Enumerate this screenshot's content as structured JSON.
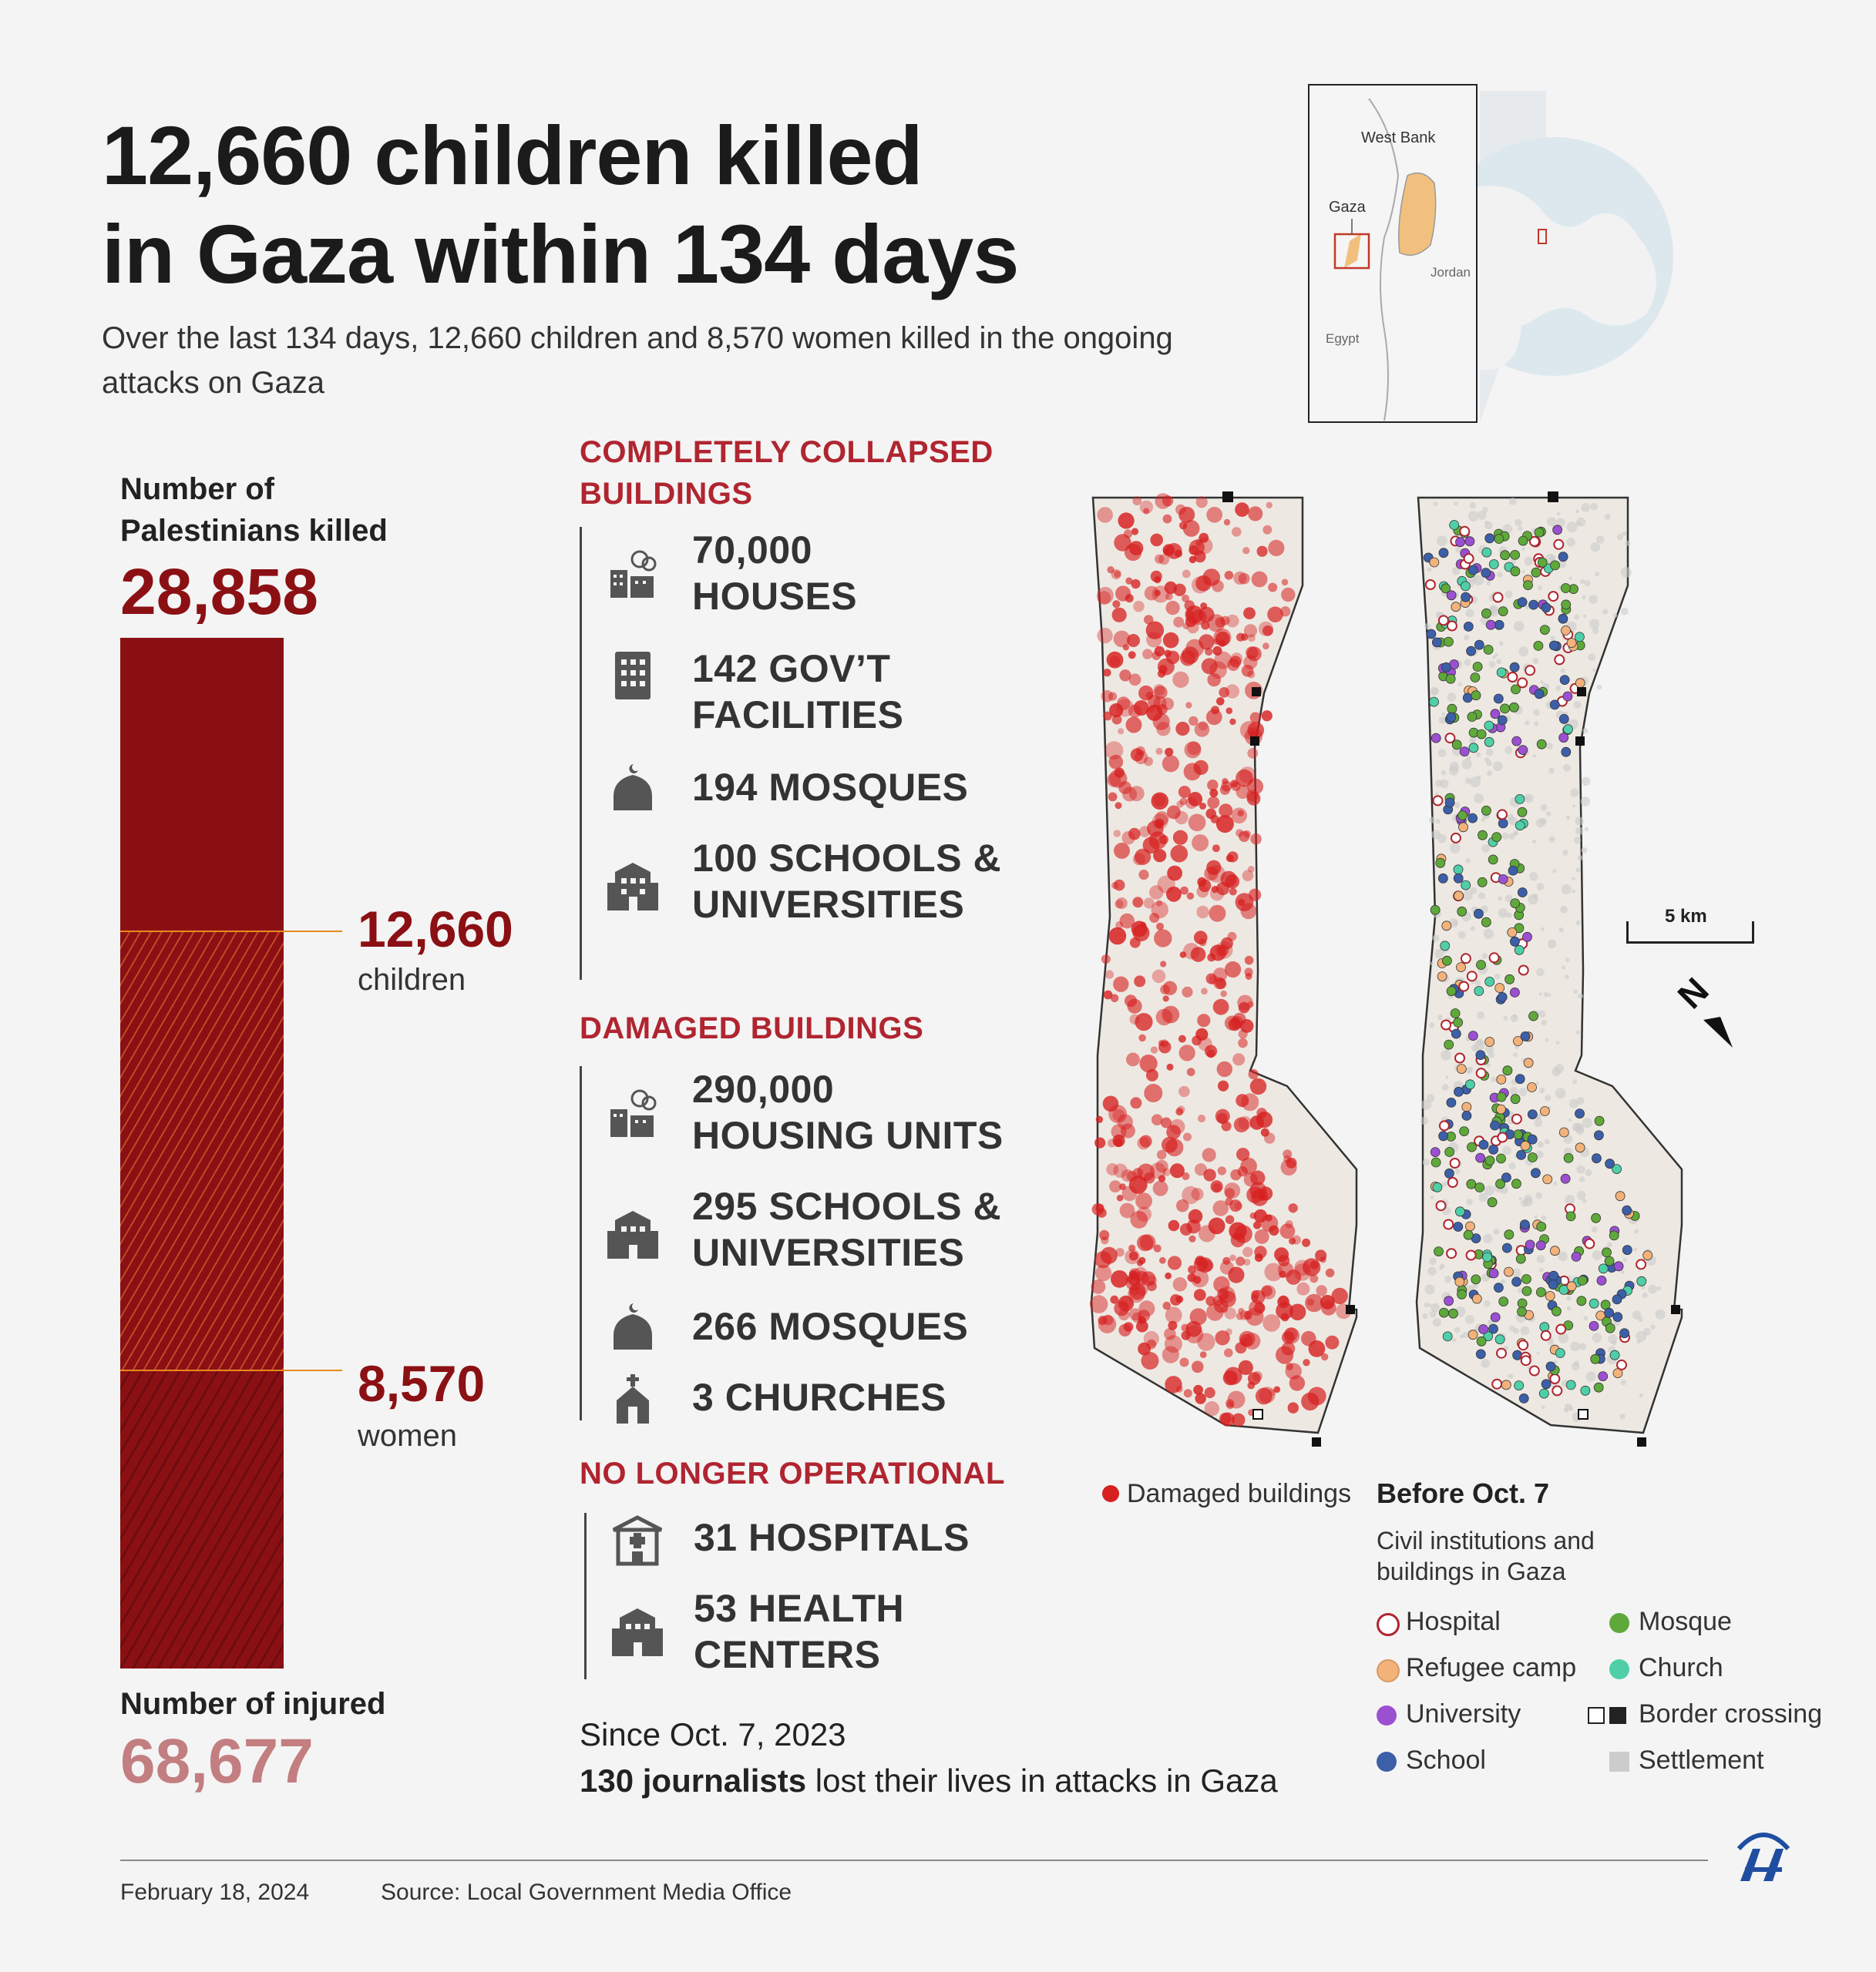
{
  "header": {
    "title_line1": "12,660 children killed",
    "title_line2": "in Gaza within 134 days",
    "subtitle": "Over the last 134 days, 12,660 children and 8,570 women killed in the ongoing attacks on Gaza"
  },
  "killed": {
    "label_line1": "Number of",
    "label_line2": "Palestinians killed",
    "total": "28,858",
    "children_value": "12,660",
    "children_label": "children",
    "women_value": "8,570",
    "women_label": "women"
  },
  "injured": {
    "label": "Number of injured",
    "value": "68,677"
  },
  "collapsed": {
    "heading_line1": "COMPLETELY COLLAPSED",
    "heading_line2": "BUILDINGS",
    "items": [
      {
        "line1": "70,000",
        "line2": "HOUSES",
        "icon": "destroyed-building-icon"
      },
      {
        "line1": "142 GOV’T",
        "line2": "FACILITIES",
        "icon": "office-building-icon"
      },
      {
        "line1": "194 MOSQUES",
        "line2": "",
        "icon": "mosque-icon"
      },
      {
        "line1": "100 SCHOOLS &",
        "line2": "UNIVERSITIES",
        "icon": "school-icon"
      }
    ]
  },
  "damaged": {
    "heading": "DAMAGED BUILDINGS",
    "items": [
      {
        "line1": "290,000",
        "line2": "HOUSING UNITS",
        "icon": "destroyed-building-icon"
      },
      {
        "line1": "295 SCHOOLS &",
        "line2": "UNIVERSITIES",
        "icon": "school-icon"
      },
      {
        "line1": "266 MOSQUES",
        "line2": "",
        "icon": "mosque-icon"
      },
      {
        "line1": "3 CHURCHES",
        "line2": "",
        "icon": "church-icon"
      }
    ]
  },
  "not_operational": {
    "heading": "NO LONGER OPERATIONAL",
    "items": [
      {
        "line1": "31 HOSPITALS",
        "line2": "",
        "icon": "hospital-icon"
      },
      {
        "line1": "53 HEALTH",
        "line2": "CENTERS",
        "icon": "health-center-icon"
      }
    ]
  },
  "journalists": {
    "since": "Since Oct. 7, 2023",
    "bold": "130 journalists",
    "rest": " lost their lives in attacks in Gaza"
  },
  "locator": {
    "west_bank": "West Bank",
    "gaza": "Gaza",
    "jordan": "Jordan",
    "egypt": "Egypt"
  },
  "map": {
    "scale_label": "5 km",
    "north_label": "N"
  },
  "legend": {
    "damaged": "Damaged buildings",
    "before_title": "Before Oct. 7",
    "before_sub_line1": "Civil institutions and",
    "before_sub_line2": "buildings in Gaza",
    "hospital": "Hospital",
    "refugee_camp": "Refugee camp",
    "university": "University",
    "school": "School",
    "mosque": "Mosque",
    "church": "Church",
    "border_crossing": "Border crossing",
    "settlement": "Settlement"
  },
  "colors": {
    "dark_red": "#8b1014",
    "accent_red": "#b02530",
    "damage_red": "#d62020",
    "hospital": "#b02530",
    "refugee": "#f2b27a",
    "university": "#9b4fd1",
    "school": "#3d5fa8",
    "mosque": "#5fa83a",
    "church": "#4fcfa8",
    "settlement": "#cccccc",
    "injured": "#c27e80"
  },
  "footer": {
    "date": "February 18, 2024",
    "source": "Source: Local Government Media Office",
    "logo_text": "AA"
  }
}
